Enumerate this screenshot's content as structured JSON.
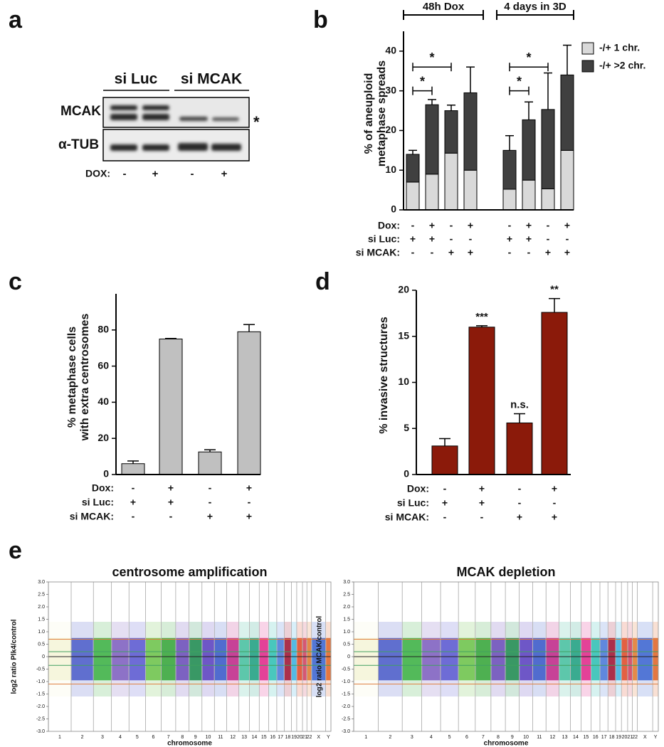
{
  "panel_labels": [
    "a",
    "b",
    "c",
    "d",
    "e"
  ],
  "blot": {
    "group_labels": [
      "si Luc",
      "si MCAK"
    ],
    "row_labels": [
      "MCAK",
      "α-TUB"
    ],
    "marker": "*",
    "dox_label": "DOX:",
    "dox_signs": [
      "-",
      "+",
      "-",
      "+"
    ]
  },
  "chart_data": [
    {
      "type": "stacked_bar",
      "categories": [
        null,
        null,
        null,
        null,
        null,
        null,
        null,
        null
      ],
      "ylabel": [
        "% of aneuploid",
        "metaphase spreads"
      ],
      "series": [
        {
          "name": "-/+ 1 chr.",
          "color": "#d9d9d9",
          "values": [
            7,
            9,
            14.3,
            10,
            5.2,
            7.5,
            5.3,
            15
          ],
          "errors": [
            0.8,
            0.7,
            6,
            0.8,
            2.7,
            3.3,
            0.7,
            2.5
          ]
        },
        {
          "name": "-/+ >2 chr.",
          "color": "#404040",
          "values": [
            7,
            17.5,
            10.7,
            19.5,
            9.8,
            15.2,
            20,
            19
          ],
          "errors": [
            1,
            1.3,
            1.4,
            6.5,
            3.7,
            4.5,
            9.2,
            7.5
          ]
        }
      ],
      "ylim": [
        0,
        45
      ],
      "yticks": [
        0,
        10,
        20,
        30,
        40
      ],
      "legend": "upper right",
      "groups": [
        {
          "label": "48h Dox",
          "from": 0,
          "to": 3
        },
        {
          "label": "4 days in 3D",
          "from": 4,
          "to": 7
        }
      ],
      "significance": [
        {
          "label": "*",
          "from": 0,
          "to": 1
        },
        {
          "label": "*",
          "from": 0,
          "to": 2
        },
        {
          "label": "*",
          "from": 4,
          "to": 5
        },
        {
          "label": "*",
          "from": 4,
          "to": 6
        }
      ],
      "conditions": [
        {
          "label": "Dox:",
          "signs": [
            "-",
            "+",
            "-",
            "+",
            "-",
            "+",
            "-",
            "+"
          ]
        },
        {
          "label": "si Luc:",
          "signs": [
            "+",
            "+",
            "-",
            "-",
            "+",
            "+",
            "-",
            "-"
          ]
        },
        {
          "label": "si MCAK:",
          "signs": [
            "-",
            "-",
            "+",
            "+",
            "-",
            "-",
            "+",
            "+"
          ]
        }
      ]
    },
    {
      "type": "bar",
      "categories": [
        null,
        null,
        null,
        null
      ],
      "ylabel": [
        "% metaphase cells",
        "with extra centrosomes"
      ],
      "values": [
        6,
        75,
        12.5,
        79
      ],
      "errors": [
        1.5,
        0.3,
        1.2,
        4
      ],
      "color": "#c0c0c0",
      "ylim": [
        0,
        100
      ],
      "yticks": [
        0,
        20,
        40,
        60,
        80
      ],
      "conditions": [
        {
          "label": "Dox:",
          "signs": [
            "-",
            "+",
            "-",
            "+"
          ]
        },
        {
          "label": "si Luc:",
          "signs": [
            "+",
            "+",
            "-",
            "-"
          ]
        },
        {
          "label": "si MCAK:",
          "signs": [
            "-",
            "-",
            "+",
            "+"
          ]
        }
      ]
    },
    {
      "type": "bar",
      "categories": [
        null,
        null,
        null,
        null
      ],
      "ylabel": [
        "% invasive structures"
      ],
      "values": [
        3.1,
        16,
        5.6,
        17.6
      ],
      "errors": [
        0.8,
        0.15,
        1,
        1.5
      ],
      "annotations": [
        null,
        "***",
        "n.s.",
        "**"
      ],
      "color": "#8b1a0a",
      "ylim": [
        0,
        20
      ],
      "yticks": [
        0,
        5,
        10,
        15,
        20
      ],
      "conditions": [
        {
          "label": "Dox:",
          "signs": [
            "-",
            "+",
            "-",
            "+"
          ]
        },
        {
          "label": "si Luc:",
          "signs": [
            "+",
            "+",
            "-",
            "-"
          ]
        },
        {
          "label": "si MCAK:",
          "signs": [
            "-",
            "-",
            "+",
            "+"
          ]
        }
      ]
    }
  ],
  "genome_plots": [
    {
      "title": "centrosome amplification",
      "ylabel": "log2 ratio Plk4/control",
      "xlabel": "chromosome",
      "ylim": [
        -3,
        3
      ],
      "yticks": [
        {
          "value": 3,
          "label": "3.0"
        },
        {
          "value": 2.5,
          "label": "2.5"
        },
        {
          "value": 2,
          "label": "2.0"
        },
        {
          "value": 1.5,
          "label": "1.5"
        },
        {
          "value": 1,
          "label": "1.0"
        },
        {
          "value": 0.5,
          "label": "0.5"
        },
        0,
        {
          "value": -0.5,
          "label": "-0.5"
        },
        {
          "value": -1,
          "label": "-1.0"
        },
        {
          "value": -1.5,
          "label": "-1.5"
        },
        {
          "value": -2,
          "label": "-2.0"
        },
        {
          "value": -2.5,
          "label": "-2.5"
        },
        {
          "value": -3,
          "label": "-3.0"
        }
      ],
      "chromosomes": [
        "1",
        "2",
        "3",
        "4",
        "5",
        "6",
        "7",
        "8",
        "9",
        "10",
        "11",
        "12",
        "13",
        "14",
        "15",
        "16",
        "17",
        "18",
        "19",
        "20",
        "21",
        "22",
        "X",
        "Y"
      ]
    },
    {
      "title": "MCAK depletion",
      "ylabel": "log2 ratio MCAK/control",
      "xlabel": "chromosome",
      "ylim": [
        -3,
        3
      ],
      "yticks": [
        {
          "value": 3,
          "label": "3.0"
        },
        {
          "value": 2.5,
          "label": "2.5"
        },
        {
          "value": 2,
          "label": "2.0"
        },
        {
          "value": 1.5,
          "label": "1.5"
        },
        {
          "value": 1,
          "label": "1.0"
        },
        {
          "value": 0.5,
          "label": "0.5"
        },
        0,
        {
          "value": -0.5,
          "label": "-0.5"
        },
        {
          "value": -1,
          "label": "-1.0"
        },
        {
          "value": -1.5,
          "label": "-1.5"
        },
        {
          "value": -2,
          "label": "-2.0"
        },
        {
          "value": -2.5,
          "label": "-2.5"
        },
        {
          "value": -3,
          "label": "-3.0"
        }
      ],
      "chromosomes": [
        "1",
        "2",
        "3",
        "4",
        "5",
        "6",
        "7",
        "8",
        "9",
        "10",
        "11",
        "12",
        "13",
        "14",
        "15",
        "16",
        "17",
        "18",
        "19",
        "20",
        "21",
        "22",
        "X",
        "Y"
      ]
    }
  ]
}
